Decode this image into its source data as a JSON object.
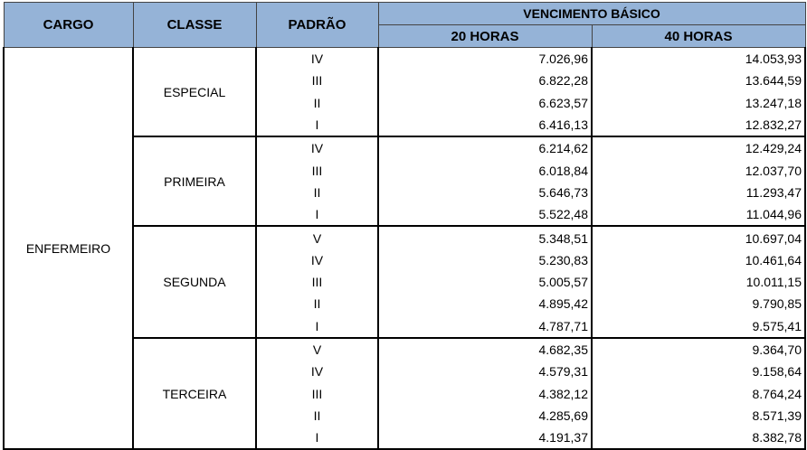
{
  "header": {
    "cargo": "CARGO",
    "classe": "CLASSE",
    "padrao": "PADRÃO",
    "vencimento": "VENCIMENTO BÁSICO",
    "h20": "20 HORAS",
    "h40": "40 HORAS"
  },
  "cargo": "ENFERMEIRO",
  "groups": [
    {
      "classe": "ESPECIAL",
      "rows": [
        [
          "IV",
          "7.026,96",
          "14.053,93"
        ],
        [
          "III",
          "6.822,28",
          "13.644,59"
        ],
        [
          "II",
          "6.623,57",
          "13.247,18"
        ],
        [
          "I",
          "6.416,13",
          "12.832,27"
        ]
      ]
    },
    {
      "classe": "PRIMEIRA",
      "rows": [
        [
          "IV",
          "6.214,62",
          "12.429,24"
        ],
        [
          "III",
          "6.018,84",
          "12.037,70"
        ],
        [
          "II",
          "5.646,73",
          "11.293,47"
        ],
        [
          "I",
          "5.522,48",
          "11.044,96"
        ]
      ]
    },
    {
      "classe": "SEGUNDA",
      "rows": [
        [
          "V",
          "5.348,51",
          "10.697,04"
        ],
        [
          "IV",
          "5.230,83",
          "10.461,64"
        ],
        [
          "III",
          "5.005,57",
          "10.011,15"
        ],
        [
          "II",
          "4.895,42",
          "9.790,85"
        ],
        [
          "I",
          "4.787,71",
          "9.575,41"
        ]
      ]
    },
    {
      "classe": "TERCEIRA",
      "rows": [
        [
          "V",
          "4.682,35",
          "9.364,70"
        ],
        [
          "IV",
          "4.579,31",
          "9.158,64"
        ],
        [
          "III",
          "4.382,12",
          "8.764,24"
        ],
        [
          "II",
          "4.285,69",
          "8.571,39"
        ],
        [
          "I",
          "4.191,37",
          "8.382,78"
        ]
      ]
    }
  ]
}
